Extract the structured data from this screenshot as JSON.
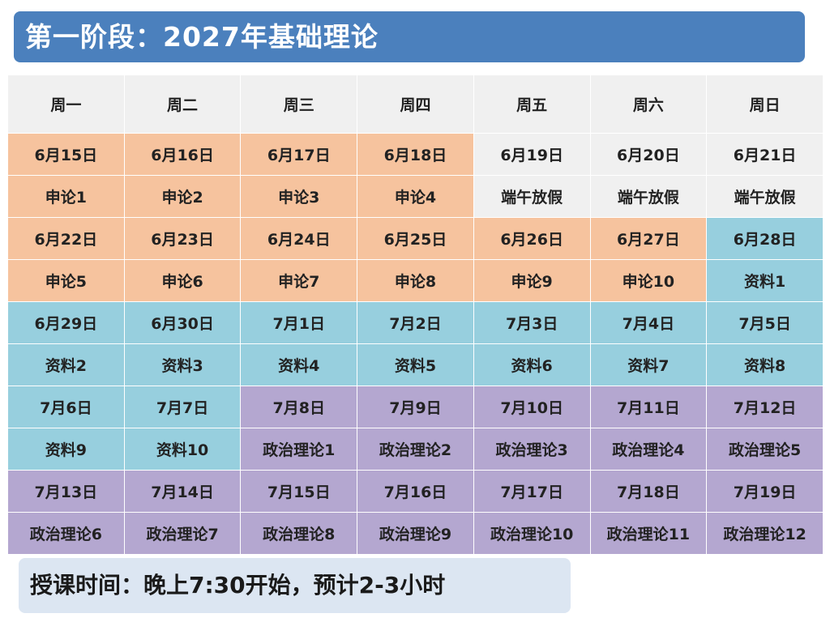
{
  "title": "第一阶段：2027年基础理论",
  "weekdays": [
    "周一",
    "周二",
    "周三",
    "周四",
    "周五",
    "周六",
    "周日"
  ],
  "colors": {
    "header": "#4b80bd",
    "shenlun": "#f6c39e",
    "holiday": "#f0f0f0",
    "ziliao": "#97cfde",
    "zhengzhi": "#b4a7d0",
    "note": "#dce6f2"
  },
  "weeks": [
    {
      "dates": [
        "6月15日",
        "6月16日",
        "6月17日",
        "6月18日",
        "6月19日",
        "6月20日",
        "6月21日"
      ],
      "subjects": [
        "申论1",
        "申论2",
        "申论3",
        "申论4",
        "端午放假",
        "端午放假",
        "端午放假"
      ],
      "colors": [
        "orange",
        "orange",
        "orange",
        "orange",
        "gray",
        "gray",
        "gray"
      ]
    },
    {
      "dates": [
        "6月22日",
        "6月23日",
        "6月24日",
        "6月25日",
        "6月26日",
        "6月27日",
        "6月28日"
      ],
      "subjects": [
        "申论5",
        "申论6",
        "申论7",
        "申论8",
        "申论9",
        "申论10",
        "资料1"
      ],
      "colors": [
        "orange",
        "orange",
        "orange",
        "orange",
        "orange",
        "orange",
        "blue"
      ]
    },
    {
      "dates": [
        "6月29日",
        "6月30日",
        "7月1日",
        "7月2日",
        "7月3日",
        "7月4日",
        "7月5日"
      ],
      "subjects": [
        "资料2",
        "资料3",
        "资料4",
        "资料5",
        "资料6",
        "资料7",
        "资料8"
      ],
      "colors": [
        "blue",
        "blue",
        "blue",
        "blue",
        "blue",
        "blue",
        "blue"
      ]
    },
    {
      "dates": [
        "7月6日",
        "7月7日",
        "7月8日",
        "7月9日",
        "7月10日",
        "7月11日",
        "7月12日"
      ],
      "subjects": [
        "资料9",
        "资料10",
        "政治理论1",
        "政治理论2",
        "政治理论3",
        "政治理论4",
        "政治理论5"
      ],
      "colors": [
        "blue",
        "blue",
        "purple",
        "purple",
        "purple",
        "purple",
        "purple"
      ]
    },
    {
      "dates": [
        "7月13日",
        "7月14日",
        "7月15日",
        "7月16日",
        "7月17日",
        "7月18日",
        "7月19日"
      ],
      "subjects": [
        "政治理论6",
        "政治理论7",
        "政治理论8",
        "政治理论9",
        "政治理论10",
        "政治理论11",
        "政治理论12"
      ],
      "colors": [
        "purple",
        "purple",
        "purple",
        "purple",
        "purple",
        "purple",
        "purple"
      ]
    }
  ],
  "note": "授课时间：晚上7:30开始，预计2-3小时"
}
